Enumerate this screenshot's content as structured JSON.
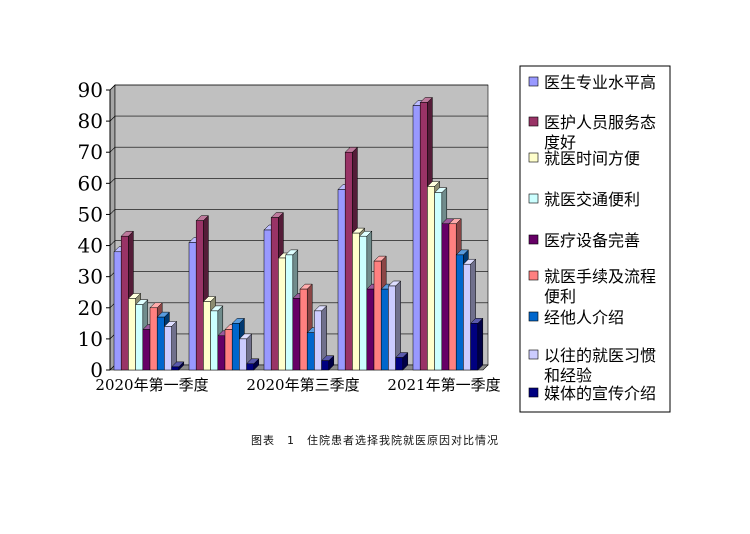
{
  "caption": {
    "label": "图表",
    "number": "1",
    "text": "住院患者选择我院就医原因对比情况"
  },
  "chart_data": {
    "type": "bar",
    "variant": "3d-clustered",
    "categories": [
      "2020年第一季度",
      "2020年第三季度",
      "2021年第一季度"
    ],
    "ylim": [
      0,
      90
    ],
    "yticks": [
      0,
      10,
      20,
      30,
      40,
      50,
      60,
      70,
      80,
      90
    ],
    "grid": true,
    "legend_position": "right",
    "plot_background": "#c0c0c0",
    "series": [
      {
        "name": "医生专业水平高",
        "color": "#9999ff",
        "values": [
          38,
          41,
          45
        ]
      },
      {
        "name": "医护人员服务态度好",
        "color": "#993366",
        "values": [
          43,
          48,
          49
        ]
      },
      {
        "name": "就医时间方便",
        "color": "#ffffcc",
        "values": [
          23,
          22,
          36
        ]
      },
      {
        "name": "就医交通便利",
        "color": "#ccffff",
        "values": [
          21,
          19,
          37
        ]
      },
      {
        "name": "医疗设备完善",
        "color": "#660066",
        "values": [
          13,
          11,
          23
        ]
      },
      {
        "name": "就医手续及流程便利",
        "color": "#ff8080",
        "values": [
          20,
          13,
          26
        ]
      },
      {
        "name": "经他人介绍",
        "color": "#0066cc",
        "values": [
          17,
          15,
          12
        ]
      },
      {
        "name": "以往的就医习惯和经验",
        "color": "#ccccff",
        "values": [
          14,
          10,
          19
        ]
      },
      {
        "name": "媒体的宣传介绍",
        "color": "#000080",
        "values": [
          1,
          2,
          3
        ]
      }
    ],
    "values_q4": [
      [
        58,
        85
      ],
      [
        70,
        86
      ],
      [
        44,
        59
      ],
      [
        43,
        57
      ],
      [
        26,
        47
      ],
      [
        35,
        47
      ],
      [
        26,
        37
      ],
      [
        27,
        34
      ],
      [
        4,
        15
      ]
    ]
  }
}
